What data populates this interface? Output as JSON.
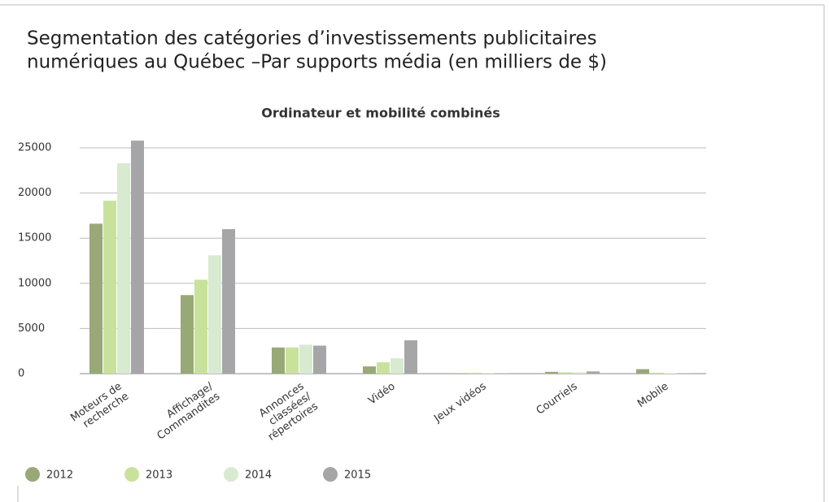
{
  "chart_data": {
    "type": "bar",
    "title": [
      "Segmentation des catégories d’investissements publicitaires",
      "numériques au Québec –Par supports média (en milliers de $)"
    ],
    "subtitle": "Ordinateur et mobilité combinés",
    "categories": [
      "Moteurs de\nrecherche",
      "Affichage/\nCommandites",
      "Annonces\nclassées/\nrépertoires",
      "Vidéo",
      "Jeux vidéos",
      "Courriels",
      "Mobile"
    ],
    "series": [
      {
        "name": "2012",
        "color": "#98a877",
        "values": [
          16600,
          8700,
          2900,
          800,
          50,
          200,
          500
        ]
      },
      {
        "name": "2013",
        "color": "#c8e29c",
        "values": [
          19150,
          10400,
          2900,
          1250,
          100,
          150,
          100
        ]
      },
      {
        "name": "2014",
        "color": "#d8ead0",
        "values": [
          23300,
          13100,
          3200,
          1700,
          80,
          150,
          50
        ]
      },
      {
        "name": "2015",
        "color": "#a6a6a8",
        "values": [
          25800,
          16000,
          3100,
          3700,
          50,
          250,
          50
        ]
      }
    ],
    "ylim": [
      0,
      25000
    ],
    "yticks": [
      0,
      5000,
      10000,
      15000,
      20000,
      25000
    ],
    "grid": true,
    "legend": "bottom"
  }
}
